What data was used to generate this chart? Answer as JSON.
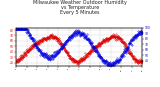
{
  "title": "Milwaukee Weather Outdoor Humidity\nvs Temperature\nEvery 5 Minutes",
  "title_fontsize": 3.5,
  "background_color": "#ffffff",
  "plot_bg_color": "#ffffff",
  "grid_color": "#b0b0b0",
  "blue_color": "#0000dd",
  "red_color": "#dd0000",
  "ylim_left": [
    14,
    84
  ],
  "ylim_right": [
    30,
    100
  ],
  "xlim": [
    0,
    576
  ],
  "marker_size": 0.6,
  "n_points": 576,
  "x_tick_step": 48,
  "y_ticks_left": [
    20,
    30,
    40,
    50,
    60,
    70,
    80
  ],
  "y_ticks_right": [
    40,
    50,
    60,
    70,
    80,
    90,
    100
  ]
}
